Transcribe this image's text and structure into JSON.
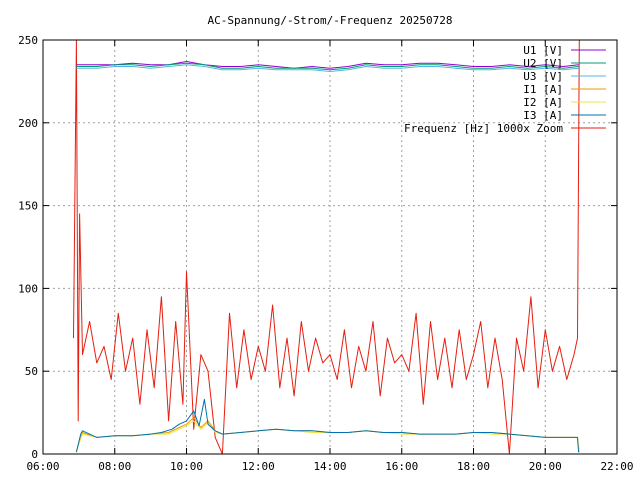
{
  "chart_data": {
    "type": "line",
    "title": "AC-Spannung/-Strom/-Frequenz 20250728",
    "xlabel": "",
    "ylabel": "",
    "xlim": [
      6,
      22
    ],
    "ylim": [
      0,
      250
    ],
    "x_ticks": [
      "06:00",
      "08:00",
      "10:00",
      "12:00",
      "14:00",
      "16:00",
      "18:00",
      "20:00",
      "22:00"
    ],
    "y_ticks": [
      "0",
      "50",
      "100",
      "150",
      "200",
      "250"
    ],
    "grid": true,
    "legend_position": "top-right",
    "series": [
      {
        "name": "U1 [V]",
        "color": "#9400d3",
        "points": [
          [
            6.93,
            235
          ],
          [
            7.5,
            235
          ],
          [
            8,
            235
          ],
          [
            8.5,
            236
          ],
          [
            9,
            235
          ],
          [
            9.5,
            235
          ],
          [
            10,
            237
          ],
          [
            10.5,
            235
          ],
          [
            11,
            234
          ],
          [
            11.5,
            234
          ],
          [
            12,
            235
          ],
          [
            12.5,
            234
          ],
          [
            13,
            233
          ],
          [
            13.5,
            234
          ],
          [
            14,
            233
          ],
          [
            14.5,
            234
          ],
          [
            15,
            236
          ],
          [
            15.5,
            235
          ],
          [
            16,
            235
          ],
          [
            16.5,
            236
          ],
          [
            17,
            236
          ],
          [
            17.5,
            235
          ],
          [
            18,
            234
          ],
          [
            18.5,
            234
          ],
          [
            19,
            235
          ],
          [
            19.5,
            234
          ],
          [
            20,
            235
          ],
          [
            20.5,
            234
          ],
          [
            20.93,
            235
          ]
        ]
      },
      {
        "name": "U2 [V]",
        "color": "#009e73",
        "points": [
          [
            6.93,
            234
          ],
          [
            7.5,
            234
          ],
          [
            8,
            235
          ],
          [
            8.5,
            235
          ],
          [
            9,
            234
          ],
          [
            9.5,
            235
          ],
          [
            10,
            236
          ],
          [
            10.5,
            235
          ],
          [
            11,
            233
          ],
          [
            11.5,
            233
          ],
          [
            12,
            234
          ],
          [
            12.5,
            233
          ],
          [
            13,
            233
          ],
          [
            13.5,
            233
          ],
          [
            14,
            232
          ],
          [
            14.5,
            233
          ],
          [
            15,
            235
          ],
          [
            15.5,
            234
          ],
          [
            16,
            234
          ],
          [
            16.5,
            235
          ],
          [
            17,
            235
          ],
          [
            17.5,
            234
          ],
          [
            18,
            233
          ],
          [
            18.5,
            233
          ],
          [
            19,
            234
          ],
          [
            19.5,
            233
          ],
          [
            20,
            234
          ],
          [
            20.5,
            233
          ],
          [
            20.93,
            234
          ]
        ]
      },
      {
        "name": "U3 [V]",
        "color": "#56b4e9",
        "points": [
          [
            6.93,
            233
          ],
          [
            7.5,
            233
          ],
          [
            8,
            234
          ],
          [
            8.5,
            234
          ],
          [
            9,
            233
          ],
          [
            9.5,
            234
          ],
          [
            10,
            235
          ],
          [
            10.5,
            234
          ],
          [
            11,
            232
          ],
          [
            11.5,
            232
          ],
          [
            12,
            233
          ],
          [
            12.5,
            232
          ],
          [
            13,
            232
          ],
          [
            13.5,
            232
          ],
          [
            14,
            231
          ],
          [
            14.5,
            232
          ],
          [
            15,
            234
          ],
          [
            15.5,
            233
          ],
          [
            16,
            233
          ],
          [
            16.5,
            234
          ],
          [
            17,
            234
          ],
          [
            17.5,
            233
          ],
          [
            18,
            232
          ],
          [
            18.5,
            232
          ],
          [
            19,
            233
          ],
          [
            19.5,
            232
          ],
          [
            20,
            233
          ],
          [
            20.5,
            232
          ],
          [
            20.93,
            233
          ]
        ]
      },
      {
        "name": "I1 [A]",
        "color": "#e69f00",
        "points": [
          [
            6.93,
            2
          ],
          [
            7.1,
            13
          ],
          [
            7.5,
            10
          ],
          [
            8,
            11
          ],
          [
            8.5,
            11
          ],
          [
            9,
            12
          ],
          [
            9.5,
            13
          ],
          [
            9.8,
            16
          ],
          [
            10,
            18
          ],
          [
            10.2,
            22
          ],
          [
            10.4,
            16
          ],
          [
            10.6,
            20
          ],
          [
            10.8,
            14
          ],
          [
            11,
            12
          ],
          [
            11.5,
            13
          ],
          [
            12,
            14
          ],
          [
            12.5,
            15
          ],
          [
            13,
            14
          ],
          [
            13.5,
            14
          ],
          [
            14,
            13
          ],
          [
            14.5,
            13
          ],
          [
            15,
            14
          ],
          [
            15.5,
            13
          ],
          [
            16,
            13
          ],
          [
            16.5,
            12
          ],
          [
            17,
            12
          ],
          [
            17.5,
            12
          ],
          [
            18,
            13
          ],
          [
            18.5,
            13
          ],
          [
            19,
            12
          ],
          [
            19.5,
            11
          ],
          [
            20,
            10
          ],
          [
            20.5,
            10
          ],
          [
            20.9,
            10
          ],
          [
            20.95,
            1
          ]
        ]
      },
      {
        "name": "I2 [A]",
        "color": "#f0e442",
        "points": [
          [
            6.93,
            2
          ],
          [
            7.1,
            12
          ],
          [
            7.5,
            10
          ],
          [
            8,
            11
          ],
          [
            8.5,
            11
          ],
          [
            9,
            12
          ],
          [
            9.5,
            12
          ],
          [
            9.8,
            15
          ],
          [
            10,
            17
          ],
          [
            10.2,
            20
          ],
          [
            10.4,
            15
          ],
          [
            10.6,
            19
          ],
          [
            10.8,
            13
          ],
          [
            11,
            12
          ],
          [
            11.5,
            13
          ],
          [
            12,
            14
          ],
          [
            12.5,
            15
          ],
          [
            13,
            14
          ],
          [
            13.5,
            13
          ],
          [
            14,
            13
          ],
          [
            14.5,
            13
          ],
          [
            15,
            14
          ],
          [
            15.5,
            13
          ],
          [
            16,
            12
          ],
          [
            16.5,
            12
          ],
          [
            17,
            12
          ],
          [
            17.5,
            12
          ],
          [
            18,
            13
          ],
          [
            18.5,
            12
          ],
          [
            19,
            12
          ],
          [
            19.5,
            11
          ],
          [
            20,
            10
          ],
          [
            20.5,
            10
          ],
          [
            20.9,
            10
          ],
          [
            20.95,
            1
          ]
        ]
      },
      {
        "name": "I3 [A]",
        "color": "#0072b2",
        "points": [
          [
            6.93,
            1
          ],
          [
            7.05,
            12
          ],
          [
            7.1,
            14
          ],
          [
            7.5,
            10
          ],
          [
            8,
            11
          ],
          [
            8.5,
            11
          ],
          [
            9,
            12
          ],
          [
            9.3,
            13
          ],
          [
            9.6,
            15
          ],
          [
            9.8,
            18
          ],
          [
            10,
            20
          ],
          [
            10.2,
            26
          ],
          [
            10.35,
            17
          ],
          [
            10.5,
            33
          ],
          [
            10.6,
            18
          ],
          [
            10.8,
            14
          ],
          [
            11,
            12
          ],
          [
            11.5,
            13
          ],
          [
            12,
            14
          ],
          [
            12.5,
            15
          ],
          [
            13,
            14
          ],
          [
            13.5,
            14
          ],
          [
            14,
            13
          ],
          [
            14.5,
            13
          ],
          [
            15,
            14
          ],
          [
            15.5,
            13
          ],
          [
            16,
            13
          ],
          [
            16.5,
            12
          ],
          [
            17,
            12
          ],
          [
            17.5,
            12
          ],
          [
            18,
            13
          ],
          [
            18.5,
            13
          ],
          [
            19,
            12
          ],
          [
            19.5,
            11
          ],
          [
            20,
            10
          ],
          [
            20.5,
            10
          ],
          [
            20.9,
            10
          ],
          [
            20.93,
            1
          ]
        ]
      },
      {
        "name": "Frequenz [Hz] 1000x Zoom",
        "color": "#e51e10",
        "points": [
          [
            6.85,
            70
          ],
          [
            6.93,
            250
          ],
          [
            6.98,
            20
          ],
          [
            7.02,
            145
          ],
          [
            7.1,
            60
          ],
          [
            7.3,
            80
          ],
          [
            7.5,
            55
          ],
          [
            7.7,
            65
          ],
          [
            7.9,
            45
          ],
          [
            8.1,
            85
          ],
          [
            8.3,
            50
          ],
          [
            8.5,
            70
          ],
          [
            8.7,
            30
          ],
          [
            8.9,
            75
          ],
          [
            9.1,
            40
          ],
          [
            9.3,
            95
          ],
          [
            9.5,
            20
          ],
          [
            9.7,
            80
          ],
          [
            9.9,
            30
          ],
          [
            10,
            110
          ],
          [
            10.2,
            15
          ],
          [
            10.4,
            60
          ],
          [
            10.6,
            50
          ],
          [
            10.8,
            10
          ],
          [
            11,
            0
          ],
          [
            11.2,
            85
          ],
          [
            11.4,
            40
          ],
          [
            11.6,
            75
          ],
          [
            11.8,
            45
          ],
          [
            12,
            65
          ],
          [
            12.2,
            50
          ],
          [
            12.4,
            90
          ],
          [
            12.6,
            40
          ],
          [
            12.8,
            70
          ],
          [
            13,
            35
          ],
          [
            13.2,
            80
          ],
          [
            13.4,
            50
          ],
          [
            13.6,
            70
          ],
          [
            13.8,
            55
          ],
          [
            14,
            60
          ],
          [
            14.2,
            45
          ],
          [
            14.4,
            75
          ],
          [
            14.6,
            40
          ],
          [
            14.8,
            65
          ],
          [
            15,
            50
          ],
          [
            15.2,
            80
          ],
          [
            15.4,
            35
          ],
          [
            15.6,
            70
          ],
          [
            15.8,
            55
          ],
          [
            16,
            60
          ],
          [
            16.2,
            50
          ],
          [
            16.4,
            85
          ],
          [
            16.6,
            30
          ],
          [
            16.8,
            80
          ],
          [
            17,
            45
          ],
          [
            17.2,
            70
          ],
          [
            17.4,
            40
          ],
          [
            17.6,
            75
          ],
          [
            17.8,
            45
          ],
          [
            18,
            60
          ],
          [
            18.2,
            80
          ],
          [
            18.4,
            40
          ],
          [
            18.6,
            70
          ],
          [
            18.8,
            45
          ],
          [
            19,
            0
          ],
          [
            19.2,
            70
          ],
          [
            19.4,
            50
          ],
          [
            19.6,
            95
          ],
          [
            19.8,
            40
          ],
          [
            20,
            75
          ],
          [
            20.2,
            50
          ],
          [
            20.4,
            65
          ],
          [
            20.6,
            45
          ],
          [
            20.8,
            60
          ],
          [
            20.9,
            70
          ],
          [
            20.95,
            250
          ]
        ]
      }
    ]
  }
}
